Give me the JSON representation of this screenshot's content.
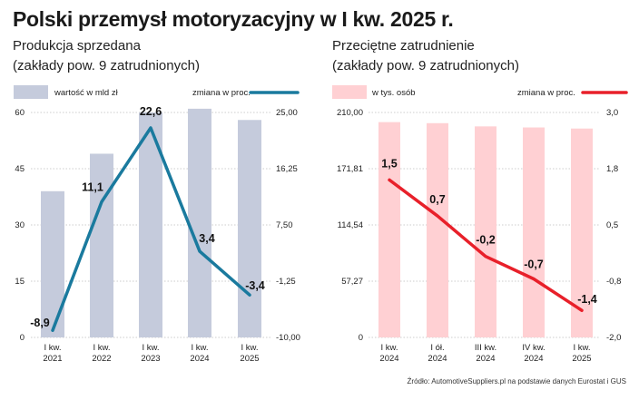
{
  "title": "Polski przemysł motoryzacyjny w I kw. 2025 r.",
  "source": "Źródło: AutomotiveSuppliers.pl na podstawie danych Eurostat i GUS",
  "colors": {
    "left_bar": "#c5cbdc",
    "left_line": "#1a7a9e",
    "right_bar": "#ffd0d3",
    "right_line": "#e8202a"
  },
  "chart_data": [
    {
      "type": "bar",
      "title": "Produkcja sprzedana",
      "subtitle": "(zakłady pow. 9 zatrudnionych)",
      "legend": {
        "bar_label": "wartość w mld zł",
        "line_label": "zmiana w proc."
      },
      "categories": [
        {
          "line1": "I kw.",
          "line2": "2021"
        },
        {
          "line1": "I kw.",
          "line2": "2022"
        },
        {
          "line1": "I kw.",
          "line2": "2023"
        },
        {
          "line1": "I kw.",
          "line2": "2024"
        },
        {
          "line1": "I kw.",
          "line2": "2025"
        }
      ],
      "bar_values": [
        39,
        49,
        60,
        61,
        58
      ],
      "line_values": [
        -8.9,
        11.1,
        22.6,
        3.4,
        -3.4
      ],
      "line_labels": [
        "-8,9",
        "11,1",
        "22,6",
        "3,4",
        "-3,4"
      ],
      "y_left": {
        "min": 0,
        "max": 60,
        "ticks": [
          "0",
          "15",
          "30",
          "45",
          "60"
        ]
      },
      "y_right": {
        "min": -10,
        "max": 25,
        "ticks": [
          "-10,00",
          "-1,25",
          "7,50",
          "16,25",
          "25,00"
        ]
      }
    },
    {
      "type": "bar",
      "title": "Przeciętne zatrudnienie",
      "subtitle": "(zakłady pow. 9 zatrudnionych)",
      "legend": {
        "bar_label": "w tys. osób",
        "line_label": "zmiana w proc."
      },
      "categories": [
        {
          "line1": "I kw.",
          "line2": "2024"
        },
        {
          "line1": "I ół.",
          "line2": "2024"
        },
        {
          "line1": "III kw.",
          "line2": "2024"
        },
        {
          "line1": "IV kw.",
          "line2": "2024"
        },
        {
          "line1": "I kw.",
          "line2": "2025"
        }
      ],
      "bar_values": [
        201,
        200,
        197,
        196,
        195
      ],
      "line_values": [
        1.5,
        0.7,
        -0.2,
        -0.7,
        -1.4
      ],
      "line_labels": [
        "1,5",
        "0,7",
        "-0,2",
        "-0,7",
        "-1,4"
      ],
      "y_left": {
        "min": 0,
        "max": 210,
        "ticks": [
          "0",
          "57,27",
          "114,54",
          "171,81",
          "210,00"
        ]
      },
      "y_right": {
        "min": -2,
        "max": 3,
        "ticks": [
          "-2,0",
          "-0,8",
          "0,5",
          "1,8",
          "3,0"
        ]
      }
    }
  ]
}
